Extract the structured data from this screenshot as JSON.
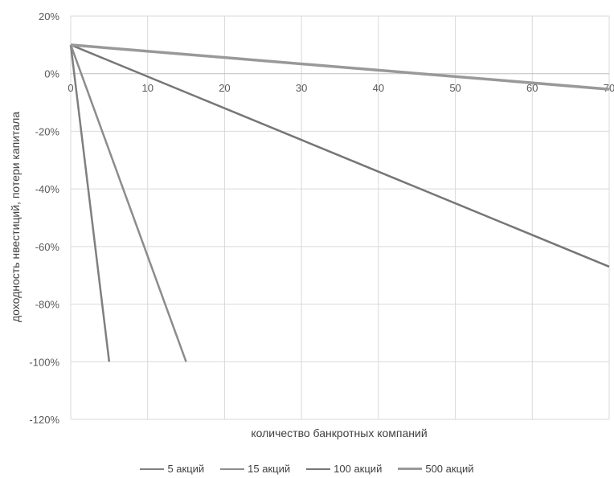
{
  "chart_data": {
    "type": "line",
    "xlabel": "количество банкротных компаний",
    "ylabel": "доходность нвестиций, потери капитала",
    "xlim": [
      0,
      70
    ],
    "ylim": [
      -120,
      20
    ],
    "x_ticks": [
      0,
      10,
      20,
      30,
      40,
      50,
      60,
      70
    ],
    "x_tick_labels": [
      "0",
      "10",
      "20",
      "30",
      "40",
      "50",
      "60",
      "70"
    ],
    "y_ticks": [
      20,
      0,
      -20,
      -40,
      -60,
      -80,
      -100,
      -120
    ],
    "y_tick_labels": [
      "20%",
      "0%",
      "-20%",
      "-40%",
      "-60%",
      "-80%",
      "-100%",
      "-120%"
    ],
    "grid": true,
    "legend_position": "bottom",
    "series": [
      {
        "name": "5 акций",
        "color": "#7f7f7f",
        "width": 2.5,
        "points": [
          [
            0,
            10
          ],
          [
            5,
            -100
          ]
        ]
      },
      {
        "name": "15 акций",
        "color": "#8c8c8c",
        "width": 2.5,
        "points": [
          [
            0,
            10
          ],
          [
            15,
            -100
          ]
        ]
      },
      {
        "name": "100 акций",
        "color": "#767676",
        "width": 2.5,
        "points": [
          [
            0,
            10
          ],
          [
            70,
            -67
          ]
        ]
      },
      {
        "name": "500 акций",
        "color": "#999999",
        "width": 3.5,
        "points": [
          [
            0,
            10
          ],
          [
            70,
            -5.4
          ]
        ]
      }
    ]
  }
}
